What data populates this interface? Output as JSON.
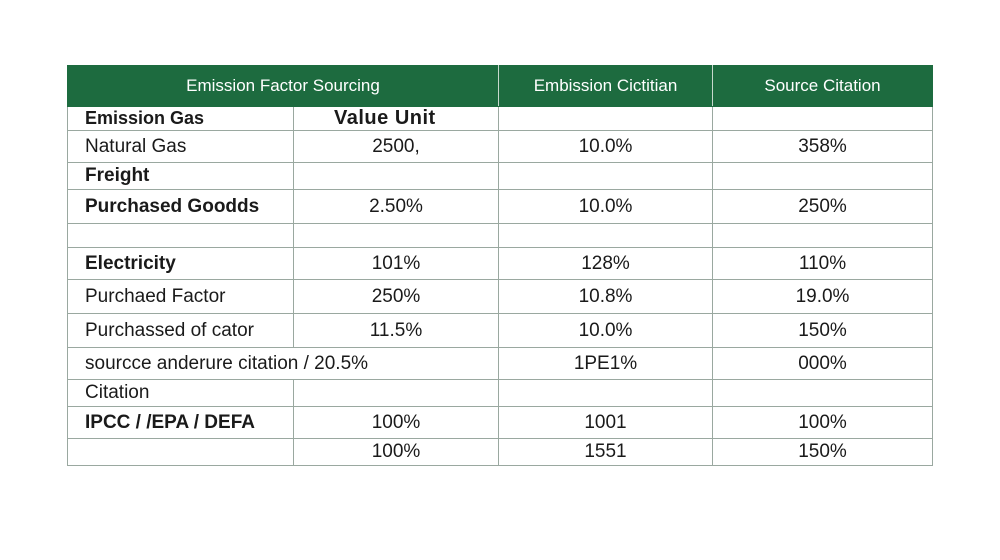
{
  "header": {
    "col1": "Emission Factor Sourcing",
    "col2": "",
    "col3": "Embission Cictitian",
    "col4": "Source Citation"
  },
  "subheader": {
    "col1": "Emission Gas",
    "col2": "Value  Unit"
  },
  "rows": [
    {
      "label": "Natural Gas",
      "bold": false,
      "v1": "2500,",
      "v2": "10.0%",
      "v3": "358%"
    },
    {
      "label": "Freight",
      "bold": true,
      "v1": "",
      "v2": "",
      "v3": ""
    },
    {
      "label": "Purchased Goodds",
      "bold": true,
      "v1": "2.50%",
      "v2": "10.0%",
      "v3": "250%"
    },
    {
      "label": "",
      "bold": false,
      "v1": "",
      "v2": "",
      "v3": ""
    },
    {
      "label": "Electricity",
      "bold": true,
      "v1": "101%",
      "v2": "128%",
      "v3": "110%"
    },
    {
      "label": "Purchaed Factor",
      "bold": false,
      "v1": "250%",
      "v2": "10.8%",
      "v3": "19.0%"
    },
    {
      "label": "Purchassed of cator",
      "bold": false,
      "v1": "11.5%",
      "v2": "10.0%",
      "v3": "150%"
    },
    {
      "label": "sourcce anderure citation / 20.5%",
      "bold": false,
      "v1": "",
      "v2": "1PE1%",
      "v3": "000%"
    },
    {
      "label": "Citation",
      "bold": false,
      "v1": "",
      "v2": "",
      "v3": ""
    },
    {
      "label": "IPCC  / /EPA / DEFA",
      "bold": true,
      "v1": "100%",
      "v2": "1001",
      "v3": "100%"
    },
    {
      "label": "",
      "bold": false,
      "v1": "100%",
      "v2": "1551",
      "v3": "150%"
    }
  ]
}
